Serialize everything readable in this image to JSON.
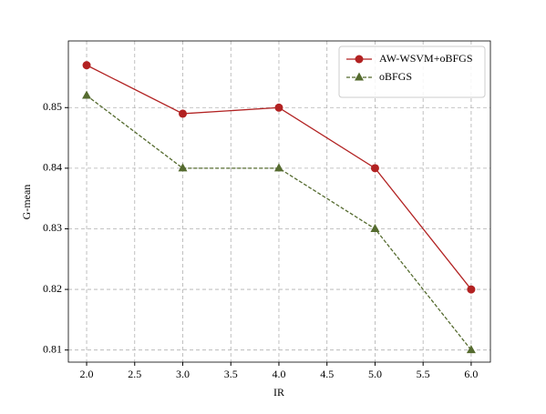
{
  "chart_data": {
    "type": "line",
    "x_label": "IR",
    "y_label": "G-mean",
    "x": [
      2,
      3,
      4,
      5,
      6
    ],
    "series": [
      {
        "name": "AW-WSVM+oBFGS",
        "color": "#b22222",
        "marker": "circle",
        "linestyle": "solid",
        "values": [
          0.857,
          0.849,
          0.85,
          0.84,
          0.82
        ]
      },
      {
        "name": "oBFGS",
        "color": "#556b2f",
        "marker": "triangle",
        "linestyle": "dashed",
        "values": [
          0.852,
          0.84,
          0.84,
          0.83,
          0.81
        ]
      }
    ],
    "xlim": [
      1.81,
      6.2
    ],
    "ylim": [
      0.808,
      0.861
    ],
    "xticks": [
      {
        "value": 2,
        "label": "2.0"
      },
      {
        "value": 2.5,
        "label": "2.5"
      },
      {
        "value": 3,
        "label": "3.0"
      },
      {
        "value": 3.5,
        "label": "3.5"
      },
      {
        "value": 4,
        "label": "4.0"
      },
      {
        "value": 4.5,
        "label": "4.5"
      },
      {
        "value": 5,
        "label": "5.0"
      },
      {
        "value": 5.5,
        "label": "5.5"
      },
      {
        "value": 6,
        "label": "6.0"
      }
    ],
    "yticks": [
      0.81,
      0.82,
      0.83,
      0.84,
      0.85
    ],
    "grid": true,
    "legend": "upper right"
  }
}
